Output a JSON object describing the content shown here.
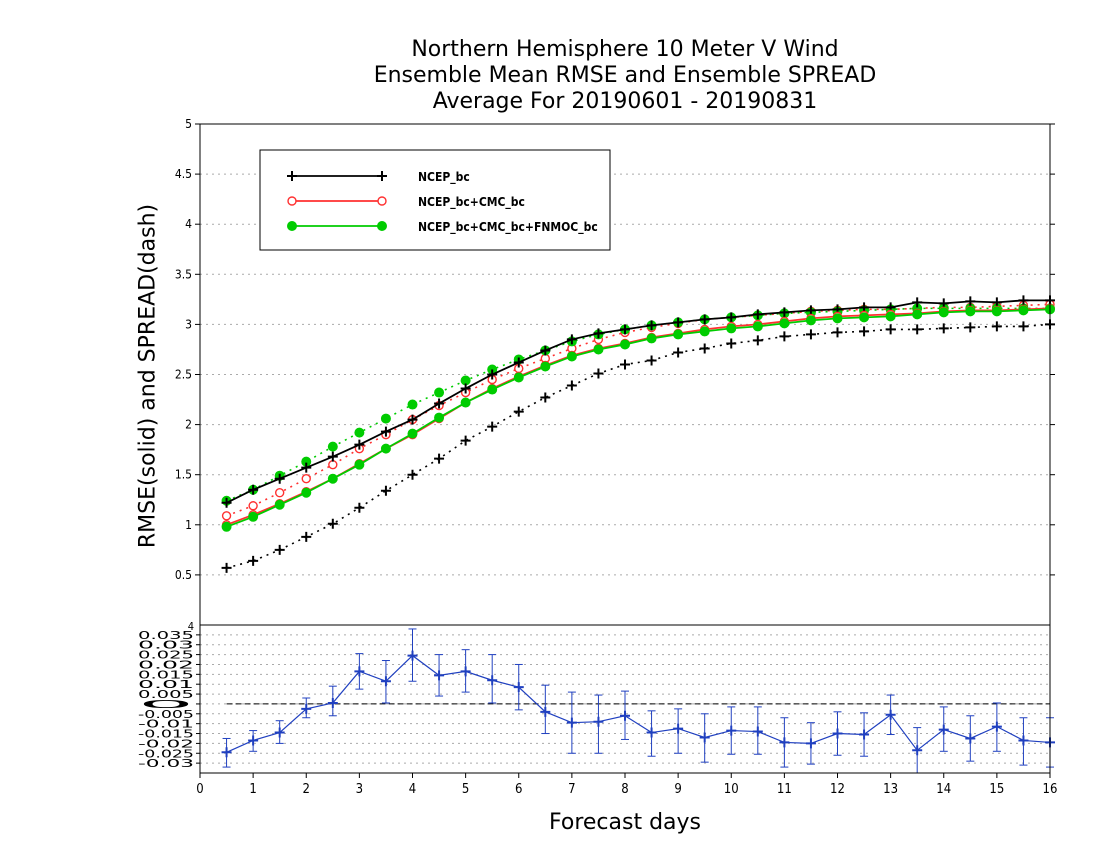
{
  "chart_data": [
    {
      "type": "line",
      "title": [
        "Northern Hemisphere 10 Meter V Wind",
        "Ensemble Mean RMSE and Ensemble SPREAD",
        "Average For 20190601 - 20190831"
      ],
      "ylabel": "RMSE(solid)  and  SPREAD(dash)",
      "xlabel": "Forecast days",
      "xlim": [
        0,
        16
      ],
      "ylim": [
        0,
        5
      ],
      "yticks": [
        0.5,
        1,
        1.5,
        2,
        2.5,
        3,
        3.5,
        4,
        4.5,
        5
      ],
      "ytick_labels": [
        "0.5",
        "1",
        "1.5",
        "2",
        "2.5",
        "3",
        "3.5",
        "4",
        "4.5",
        "5"
      ],
      "grid": true,
      "legend_placement": "top-left",
      "x": [
        0.5,
        1,
        1.5,
        2,
        2.5,
        3,
        3.5,
        4,
        4.5,
        5,
        5.5,
        6,
        6.5,
        7,
        7.5,
        8,
        8.5,
        9,
        9.5,
        10,
        10.5,
        11,
        11.5,
        12,
        12.5,
        13,
        13.5,
        14,
        14.5,
        15,
        15.5,
        16
      ],
      "series": [
        {
          "name": "NCEP_bc",
          "color": "#000000",
          "marker": "plus",
          "rmse": [
            1.22,
            1.35,
            1.46,
            1.57,
            1.68,
            1.8,
            1.93,
            2.05,
            2.21,
            2.36,
            2.5,
            2.62,
            2.74,
            2.85,
            2.91,
            2.95,
            2.99,
            3.02,
            3.05,
            3.07,
            3.1,
            3.12,
            3.14,
            3.15,
            3.17,
            3.17,
            3.22,
            3.21,
            3.23,
            3.22,
            3.24,
            3.24
          ],
          "spread": [
            0.57,
            0.64,
            0.75,
            0.88,
            1.01,
            1.17,
            1.34,
            1.5,
            1.66,
            1.84,
            1.98,
            2.13,
            2.27,
            2.39,
            2.51,
            2.6,
            2.64,
            2.72,
            2.76,
            2.81,
            2.84,
            2.88,
            2.9,
            2.92,
            2.93,
            2.95,
            2.95,
            2.96,
            2.97,
            2.98,
            2.98,
            3.0
          ]
        },
        {
          "name": "NCEP_bc+CMC_bc",
          "color": "#ff3030",
          "marker": "open-circle",
          "rmse": [
            1.0,
            1.1,
            1.21,
            1.33,
            1.46,
            1.61,
            1.76,
            1.9,
            2.06,
            2.22,
            2.36,
            2.48,
            2.59,
            2.69,
            2.76,
            2.81,
            2.87,
            2.91,
            2.95,
            2.98,
            3.0,
            3.03,
            3.06,
            3.08,
            3.09,
            3.1,
            3.11,
            3.13,
            3.14,
            3.14,
            3.15,
            3.16
          ],
          "spread": [
            1.09,
            1.19,
            1.32,
            1.46,
            1.6,
            1.76,
            1.9,
            2.05,
            2.19,
            2.32,
            2.45,
            2.56,
            2.66,
            2.76,
            2.85,
            2.92,
            2.97,
            3.01,
            3.05,
            3.07,
            3.09,
            3.11,
            3.13,
            3.14,
            3.15,
            3.15,
            3.16,
            3.17,
            3.17,
            3.18,
            3.19,
            3.2
          ]
        },
        {
          "name": "NCEP_bc+CMC_bc+FNMOC_bc",
          "color": "#00cc00",
          "marker": "filled-circle",
          "rmse": [
            0.98,
            1.08,
            1.2,
            1.32,
            1.46,
            1.6,
            1.76,
            1.91,
            2.07,
            2.22,
            2.35,
            2.47,
            2.58,
            2.68,
            2.75,
            2.8,
            2.86,
            2.9,
            2.93,
            2.96,
            2.98,
            3.01,
            3.04,
            3.06,
            3.07,
            3.08,
            3.1,
            3.12,
            3.13,
            3.13,
            3.14,
            3.15
          ],
          "spread": [
            1.24,
            1.35,
            1.49,
            1.63,
            1.78,
            1.92,
            2.06,
            2.2,
            2.32,
            2.44,
            2.55,
            2.65,
            2.74,
            2.83,
            2.9,
            2.95,
            2.99,
            3.02,
            3.05,
            3.07,
            3.09,
            3.11,
            3.12,
            3.13,
            3.14,
            3.15,
            3.16,
            3.16,
            3.16,
            3.16,
            3.16,
            3.16
          ]
        }
      ]
    },
    {
      "type": "line",
      "xlim": [
        0,
        16
      ],
      "ylim": [
        -0.035,
        0.04
      ],
      "xticks": [
        0,
        1,
        2,
        3,
        4,
        5,
        6,
        7,
        8,
        9,
        10,
        11,
        12,
        13,
        14,
        15,
        16
      ],
      "xtick_labels": [
        "0",
        "1",
        "2",
        "3",
        "4",
        "5",
        "6",
        "7",
        "8",
        "9",
        "10",
        "11",
        "12",
        "13",
        "14",
        "15",
        "16"
      ],
      "yticks": [
        0.035,
        0.03,
        0.025,
        0.02,
        0.015,
        0.01,
        0.005,
        0,
        -0.005,
        -0.01,
        -0.015,
        -0.02,
        -0.025,
        -0.03
      ],
      "ytick_labels": [
        "0.035",
        "0.03",
        "0.025",
        "0.02",
        "0.015",
        "0.01",
        "0.005",
        "0",
        "-0.005",
        "-0.01",
        "-0.015",
        "-0.02",
        "-0.025",
        "-0.03"
      ],
      "top_tick_label": "4",
      "grid": true,
      "zero_line": true,
      "series": [
        {
          "color": "#2040c0",
          "marker": "plus",
          "x": [
            0.5,
            1,
            1.5,
            2,
            2.5,
            3,
            3.5,
            4,
            4.5,
            5,
            5.5,
            6,
            6.5,
            7,
            7.5,
            8,
            8.5,
            9,
            9.5,
            10,
            10.5,
            11,
            11.5,
            12,
            12.5,
            13,
            13.5,
            14,
            14.5,
            15,
            15.5,
            16
          ],
          "values": [
            -0.0245,
            -0.0185,
            -0.0145,
            -0.0025,
            0.0005,
            0.0165,
            0.0115,
            0.0245,
            0.0145,
            0.0165,
            0.012,
            0.0085,
            -0.004,
            -0.0095,
            -0.009,
            -0.006,
            -0.0145,
            -0.0125,
            -0.017,
            -0.0135,
            -0.014,
            -0.0195,
            -0.02,
            -0.015,
            -0.0155,
            -0.0055,
            -0.0235,
            -0.013,
            -0.0175,
            -0.0115,
            -0.0185,
            -0.0195
          ],
          "err_low": [
            -0.032,
            -0.024,
            -0.02,
            -0.007,
            -0.006,
            0.0075,
            0.0005,
            0.0115,
            0.004,
            0.006,
            0.0005,
            -0.003,
            -0.015,
            -0.025,
            -0.025,
            -0.018,
            -0.0265,
            -0.025,
            -0.0295,
            -0.0255,
            -0.0255,
            -0.032,
            -0.0305,
            -0.026,
            -0.0265,
            -0.0155,
            -0.035,
            -0.024,
            -0.029,
            -0.024,
            -0.031,
            -0.032
          ],
          "err_high": [
            -0.0175,
            -0.0135,
            -0.0085,
            0.003,
            0.009,
            0.0255,
            0.022,
            0.038,
            0.025,
            0.0275,
            0.025,
            0.02,
            0.0095,
            0.006,
            0.0045,
            0.0065,
            -0.0035,
            -0.0025,
            -0.005,
            -0.0015,
            -0.0015,
            -0.007,
            -0.0095,
            -0.004,
            -0.0045,
            0.0045,
            -0.012,
            -0.0015,
            -0.006,
            0.0005,
            -0.007,
            -0.007
          ]
        }
      ]
    }
  ]
}
